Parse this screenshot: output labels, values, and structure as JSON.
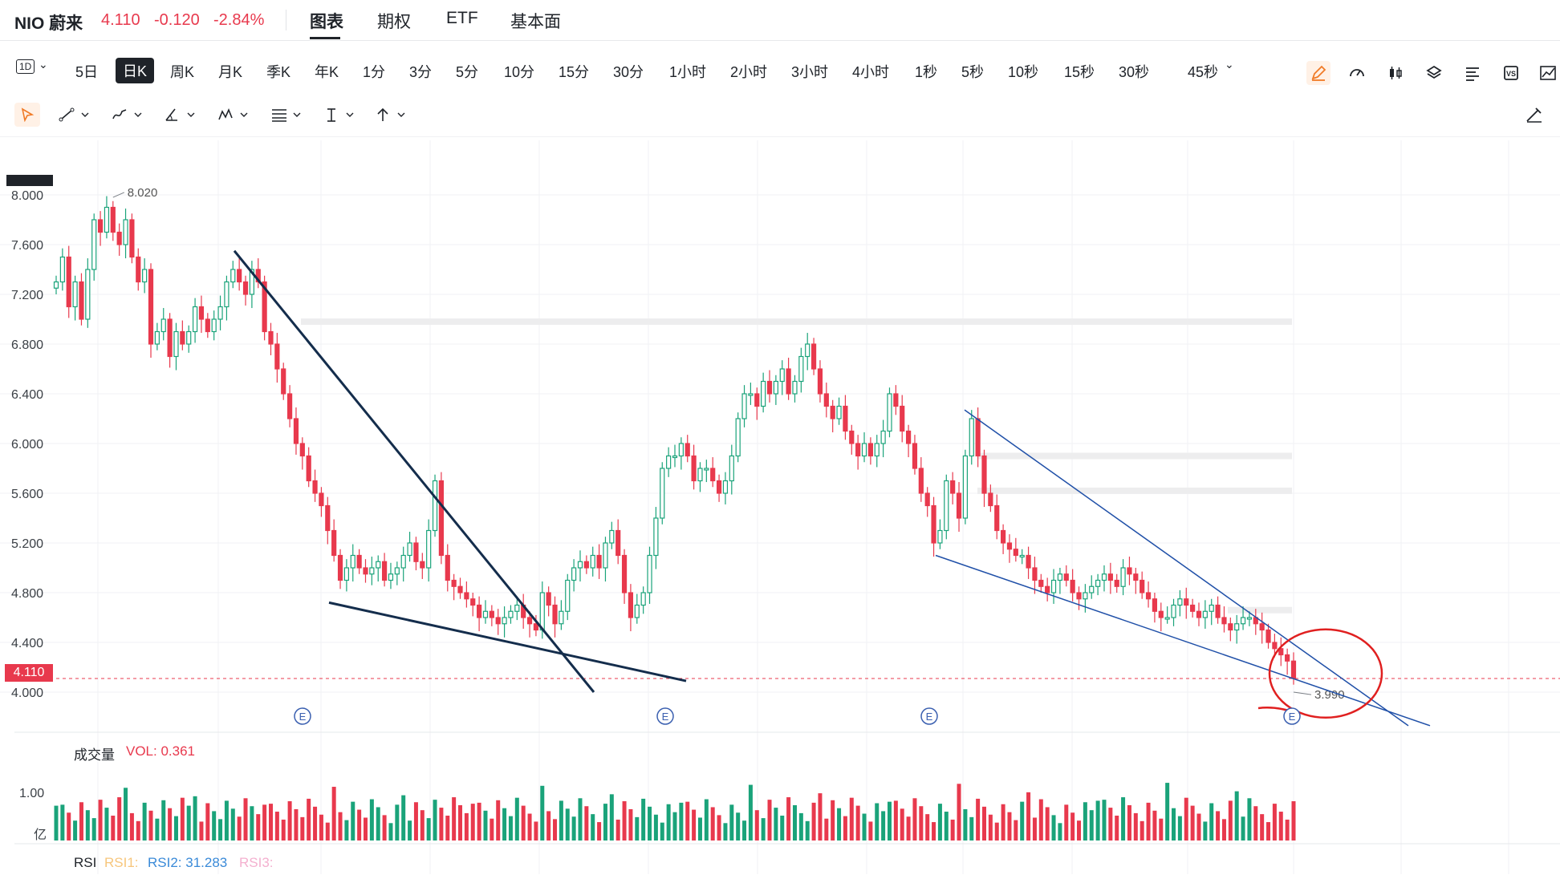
{
  "header": {
    "symbol": "NIO 蔚来",
    "price": "4.110",
    "change": "-0.120",
    "change_pct": "-2.84%",
    "tabs": [
      "图表",
      "期权",
      "ETF",
      "基本面"
    ],
    "active_tab": "图表"
  },
  "intervals": {
    "selector": "1D",
    "items": [
      "5日",
      "日K",
      "周K",
      "月K",
      "季K",
      "年K",
      "1分",
      "3分",
      "5分",
      "10分",
      "15分",
      "30分",
      "1小时",
      "2小时",
      "3小时",
      "4小时",
      "1秒",
      "5秒",
      "10秒",
      "15秒",
      "30秒",
      "45秒"
    ],
    "active": "日K"
  },
  "toolbar_icons": [
    "pencil-icon",
    "speedometer-icon",
    "candles-icon",
    "layers-icon",
    "list-icon",
    "vs-icon",
    "trend-icon"
  ],
  "drawing_tools": [
    "cursor-icon",
    "trendline-icon",
    "brush-icon",
    "angle-icon",
    "pattern-icon",
    "fib-icon",
    "text-icon",
    "arrow-icon"
  ],
  "colors": {
    "up": "#1aa37a",
    "down": "#e8394d",
    "trendline": "#142d4c",
    "thinline": "#2050a8",
    "annotation": "#e02020",
    "earnings": "#3a5fb0"
  },
  "chart_data": {
    "type": "candlestick",
    "y_axis_labels": [
      "8.000",
      "7.600",
      "7.200",
      "6.800",
      "6.400",
      "6.000",
      "5.600",
      "5.200",
      "4.800",
      "4.400",
      "4.000"
    ],
    "ylim": [
      3.9,
      8.1
    ],
    "last_price": "4.110",
    "high_label": "8.020",
    "low_label": "3.990",
    "close_series": [
      7.3,
      7.5,
      7.1,
      7.3,
      7.0,
      7.4,
      7.8,
      7.7,
      7.9,
      7.7,
      7.6,
      7.8,
      7.5,
      7.3,
      7.4,
      6.8,
      6.9,
      7.0,
      6.7,
      6.9,
      6.8,
      6.9,
      7.1,
      7.0,
      6.9,
      7.0,
      7.1,
      7.3,
      7.4,
      7.3,
      7.2,
      7.4,
      7.3,
      6.9,
      6.8,
      6.6,
      6.4,
      6.2,
      6.0,
      5.9,
      5.7,
      5.6,
      5.5,
      5.3,
      5.1,
      4.9,
      5.0,
      5.1,
      5.0,
      4.95,
      5.0,
      5.05,
      4.9,
      4.95,
      5.0,
      5.1,
      5.2,
      5.05,
      5.0,
      5.3,
      5.7,
      5.1,
      4.9,
      4.85,
      4.8,
      4.75,
      4.7,
      4.6,
      4.65,
      4.6,
      4.55,
      4.6,
      4.65,
      4.7,
      4.6,
      4.55,
      4.5,
      4.8,
      4.7,
      4.55,
      4.65,
      4.9,
      5.0,
      5.05,
      5.0,
      5.1,
      5.0,
      5.2,
      5.3,
      5.1,
      4.8,
      4.6,
      4.7,
      4.8,
      5.1,
      5.4,
      5.8,
      5.9,
      5.9,
      6.0,
      5.9,
      5.7,
      5.8,
      5.8,
      5.7,
      5.6,
      5.7,
      5.9,
      6.2,
      6.4,
      6.4,
      6.3,
      6.5,
      6.4,
      6.5,
      6.6,
      6.4,
      6.5,
      6.7,
      6.8,
      6.6,
      6.4,
      6.3,
      6.2,
      6.3,
      6.1,
      6.0,
      5.9,
      6.0,
      5.9,
      6.0,
      6.1,
      6.4,
      6.3,
      6.1,
      6.0,
      5.8,
      5.6,
      5.5,
      5.2,
      5.3,
      5.7,
      5.6,
      5.4,
      5.9,
      6.2,
      5.9,
      5.6,
      5.5,
      5.3,
      5.2,
      5.15,
      5.1,
      5.1,
      5.0,
      4.9,
      4.85,
      4.8,
      4.9,
      4.95,
      4.9,
      4.8,
      4.75,
      4.8,
      4.85,
      4.9,
      4.95,
      4.9,
      4.85,
      5.0,
      4.95,
      4.9,
      4.8,
      4.75,
      4.65,
      4.6,
      4.6,
      4.7,
      4.75,
      4.7,
      4.65,
      4.6,
      4.65,
      4.7,
      4.6,
      4.55,
      4.5,
      4.55,
      4.6,
      4.6,
      4.55,
      4.5,
      4.4,
      4.35,
      4.3,
      4.25,
      4.11
    ],
    "volume_axis_labels": [
      "1.00",
      "亿"
    ],
    "volume_label": "成交量",
    "volume_value": "VOL: 0.361",
    "rsi_labels": {
      "title": "RSI",
      "rsi1": "RSI1:",
      "rsi2": "RSI2: 31.283",
      "rsi3": "RSI3:"
    },
    "earnings_markers": [
      "E",
      "E",
      "E",
      "E"
    ],
    "patterns": [
      "falling-wedge-1",
      "falling-wedge-2"
    ],
    "grid": true
  }
}
